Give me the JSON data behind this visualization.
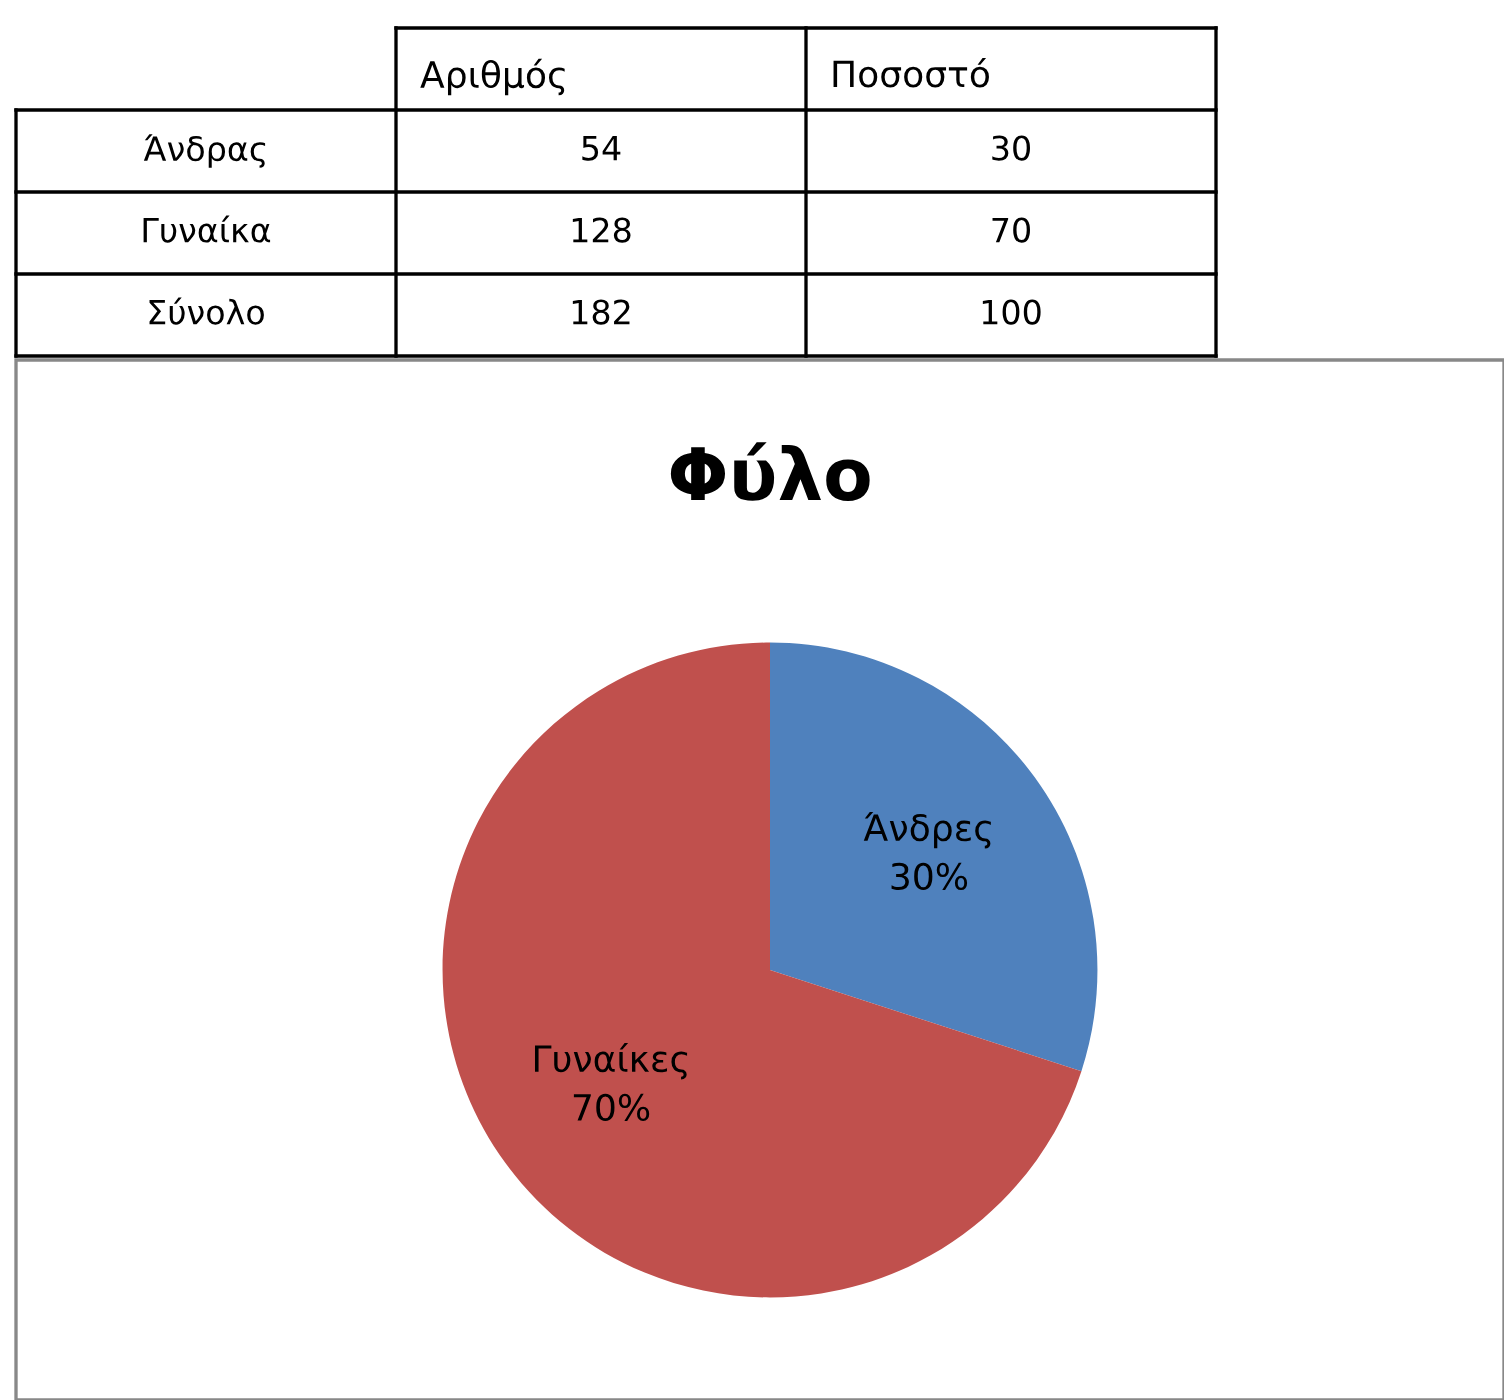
{
  "chart_data": [
    {
      "type": "other",
      "data_labels": true,
      "categories": [
        "Άνδρας",
        "Γυναίκα",
        "Σύνολο"
      ],
      "series": [
        {
          "name": "Αριθμός",
          "values": [
            54,
            128,
            182
          ]
        },
        {
          "name": "Ποσοστό",
          "values": [
            30,
            70,
            100
          ]
        }
      ]
    },
    {
      "type": "pie",
      "title": "Φύλο",
      "categories": [
        "Άνδρες",
        "Γυναίκες"
      ],
      "values": [
        30,
        70
      ],
      "colors": [
        "#4f81bd",
        "#c0504d"
      ],
      "value_labels": [
        "30%",
        "70%"
      ]
    }
  ]
}
